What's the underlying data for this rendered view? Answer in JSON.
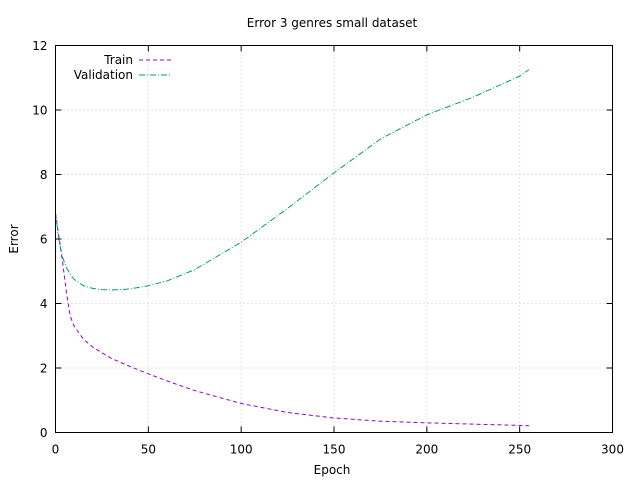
{
  "chart_data": {
    "type": "line",
    "title": "Error 3 genres small dataset",
    "xlabel": "Epoch",
    "ylabel": "Error",
    "xlim": [
      0,
      300
    ],
    "ylim": [
      0,
      12
    ],
    "xticks": [
      0,
      50,
      100,
      150,
      200,
      250,
      300
    ],
    "yticks": [
      0,
      2,
      4,
      6,
      8,
      10,
      12
    ],
    "grid": true,
    "legend_position": "top-left",
    "series": [
      {
        "name": "Train",
        "color": "#9400d3",
        "dash": "dashed",
        "x": [
          0,
          2,
          4,
          6,
          8,
          10,
          15,
          20,
          30,
          40,
          50,
          60,
          75,
          100,
          125,
          150,
          175,
          200,
          225,
          250,
          255
        ],
        "y": [
          6.8,
          6.0,
          5.2,
          4.3,
          3.6,
          3.3,
          2.9,
          2.65,
          2.3,
          2.05,
          1.82,
          1.6,
          1.3,
          0.9,
          0.62,
          0.45,
          0.35,
          0.3,
          0.26,
          0.22,
          0.21
        ]
      },
      {
        "name": "Validation",
        "color": "#009e73",
        "dash": "dash-dot",
        "x": [
          0,
          2,
          4,
          6,
          8,
          10,
          15,
          20,
          25,
          30,
          35,
          40,
          50,
          60,
          75,
          100,
          125,
          150,
          175,
          200,
          225,
          250,
          255
        ],
        "y": [
          6.8,
          5.9,
          5.4,
          5.1,
          4.9,
          4.75,
          4.55,
          4.47,
          4.43,
          4.42,
          4.43,
          4.45,
          4.55,
          4.7,
          5.05,
          5.9,
          6.95,
          8.05,
          9.1,
          9.85,
          10.4,
          11.05,
          11.25
        ]
      }
    ]
  }
}
